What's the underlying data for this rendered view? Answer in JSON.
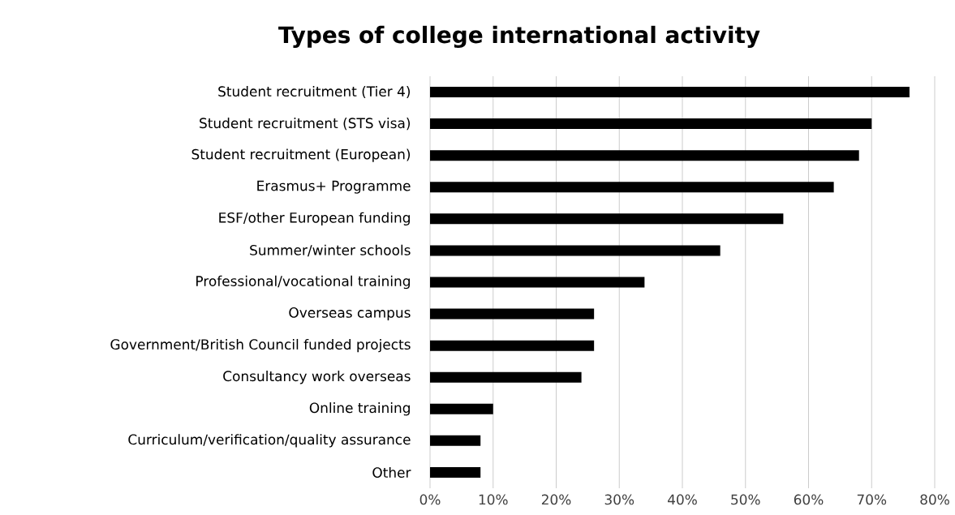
{
  "chart_data": {
    "type": "bar",
    "orientation": "horizontal",
    "title": "Types of college international activity",
    "categories": [
      "Student recruitment (Tier 4)",
      "Student recruitment (STS visa)",
      "Student recruitment (European)",
      "Erasmus+ Programme",
      "ESF/other European funding",
      "Summer/winter schools",
      "Professional/vocational training",
      "Overseas campus",
      "Government/British Council funded projects",
      "Consultancy work overseas",
      "Online training",
      "Curriculum/verification/quality assurance",
      "Other"
    ],
    "values": [
      76,
      70,
      68,
      64,
      56,
      46,
      34,
      26,
      26,
      24,
      10,
      8,
      8
    ],
    "color": "#000000",
    "xlim": [
      0,
      80
    ],
    "xticks": [
      {
        "value": 0,
        "label": "0%"
      },
      {
        "value": 10,
        "label": "10%"
      },
      {
        "value": 20,
        "label": "20%"
      },
      {
        "value": 30,
        "label": "30%"
      },
      {
        "value": 40,
        "label": "40%"
      },
      {
        "value": 50,
        "label": "50%"
      },
      {
        "value": 60,
        "label": "60%"
      },
      {
        "value": 70,
        "label": "70%"
      },
      {
        "value": 80,
        "label": "80%"
      }
    ],
    "grid": "x"
  }
}
